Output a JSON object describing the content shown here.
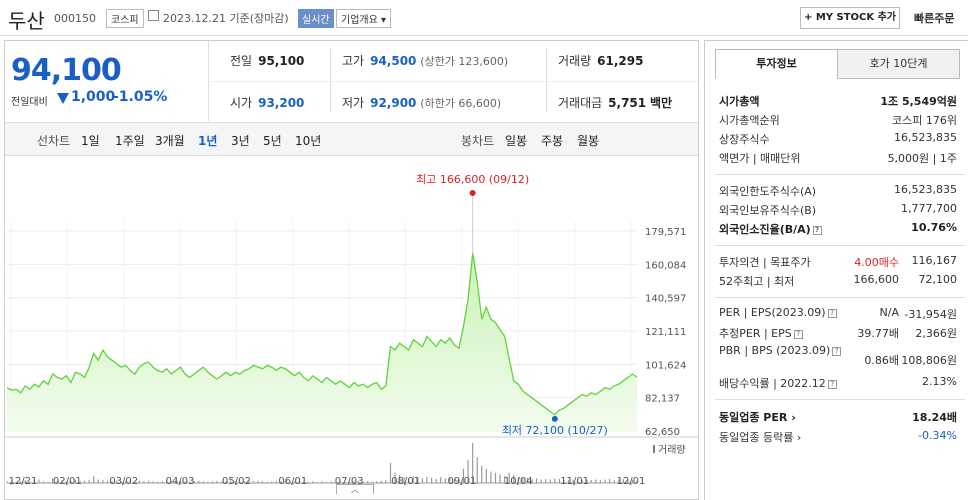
{
  "header": {
    "name": "두산",
    "code": "000150",
    "market": "코스피",
    "date": "2023.12.21 기준(장마감)",
    "realtime": "실시간",
    "corp_info": "기업개요 ▾",
    "my_stock": "+ MY STOCK 추가",
    "quick_order": "빠른주문"
  },
  "price": {
    "current": "94,100",
    "change_label": "전일대비",
    "change": "1,000",
    "change_pct": "-1.05%"
  },
  "summary": {
    "prev_label": "전일",
    "prev": "95,100",
    "high_label": "고가",
    "high": "94,500",
    "high_sub": "(상한가 123,600)",
    "vol_label": "거래량",
    "vol": "61,295",
    "open_label": "시가",
    "open": "93,200",
    "low_label": "저가",
    "low": "92,900",
    "low_sub": "(하한가 66,600)",
    "amt_label": "거래대금",
    "amt": "5,751",
    "amt_unit": "백만"
  },
  "tabs": {
    "line_label": "선차트",
    "periods": [
      "1일",
      "1주일",
      "3개월",
      "1년",
      "3년",
      "5년",
      "10년"
    ],
    "active": "1년",
    "candle_label": "봉차트",
    "candles": [
      "일봉",
      "주봉",
      "월봉"
    ]
  },
  "chart_data": {
    "type": "area",
    "x_ticks": [
      "12/21",
      "02/01",
      "03/02",
      "04/03",
      "05/02",
      "06/01",
      "07/03",
      "08/01",
      "09/01",
      "10/04",
      "11/01",
      "12/01"
    ],
    "y_ticks": [
      179571,
      160084,
      140597,
      121111,
      101624,
      82137,
      62650
    ],
    "ylim": [
      62650,
      179571
    ],
    "values": [
      88000,
      86500,
      87000,
      85000,
      89000,
      87000,
      90000,
      88500,
      92000,
      90000,
      96000,
      94000,
      93000,
      95000,
      91000,
      97000,
      96000,
      94000,
      100000,
      108000,
      104000,
      110000,
      106000,
      104000,
      102000,
      100000,
      101000,
      98000,
      96000,
      100000,
      102000,
      103000,
      100000,
      98000,
      97000,
      99000,
      96000,
      98000,
      100000,
      96000,
      94000,
      96000,
      98000,
      100000,
      97000,
      95000,
      93000,
      95000,
      97000,
      95000,
      97000,
      96000,
      98000,
      99000,
      101000,
      100000,
      99000,
      101000,
      100000,
      98000,
      100000,
      99000,
      97000,
      95000,
      97000,
      94000,
      92000,
      95000,
      93000,
      91000,
      94000,
      92000,
      90000,
      92000,
      90000,
      88000,
      91000,
      89000,
      90000,
      88000,
      90000,
      91000,
      87000,
      89000,
      112000,
      110000,
      114000,
      112000,
      110000,
      116000,
      114000,
      112000,
      118000,
      115000,
      112000,
      116000,
      114000,
      117000,
      113000,
      111000,
      124000,
      140000,
      166600,
      150000,
      128000,
      135000,
      128000,
      126000,
      122000,
      118000,
      105000,
      92000,
      90000,
      86000,
      84000,
      82000,
      80000,
      78000,
      76000,
      74000,
      72100,
      75000,
      76000,
      78000,
      80000,
      82000,
      84000,
      83000,
      85000,
      84000,
      86000,
      88000,
      87000,
      89000,
      90000,
      92000,
      94000,
      96000,
      94100
    ],
    "volumes": [
      3,
      4,
      2,
      3,
      5,
      3,
      4,
      6,
      3,
      2,
      8,
      4,
      5,
      3,
      4,
      6,
      3,
      4,
      5,
      12,
      6,
      5,
      4,
      3,
      4,
      3,
      4,
      5,
      3,
      4,
      3,
      4,
      3,
      2,
      3,
      4,
      3,
      4,
      3,
      3,
      2,
      3,
      4,
      3,
      2,
      3,
      4,
      3,
      3,
      4,
      3,
      2,
      3,
      4,
      3,
      4,
      3,
      2,
      3,
      4,
      3,
      3,
      2,
      3,
      4,
      3,
      2,
      3,
      2,
      3,
      2,
      3,
      2,
      3,
      2,
      3,
      4,
      3,
      2,
      3,
      2,
      3,
      4,
      5,
      35,
      18,
      14,
      10,
      8,
      12,
      10,
      8,
      11,
      9,
      7,
      10,
      8,
      9,
      7,
      8,
      25,
      40,
      70,
      45,
      30,
      25,
      20,
      18,
      15,
      12,
      18,
      14,
      10,
      8,
      9,
      7,
      8,
      6,
      7,
      6,
      8,
      7,
      6,
      5,
      6,
      7,
      5,
      6,
      5,
      6,
      5,
      6,
      7,
      5,
      6,
      7,
      6,
      5,
      4
    ],
    "max_label": "최고 166,600 (09/12)",
    "min_label": "최저 72,100 (10/27)",
    "volume_label": "거래량"
  },
  "invest": {
    "tab_on": "투자정보",
    "tab_off": "호가 10단계",
    "market_cap_label": "시가총액",
    "market_cap": "1조 5,549억원",
    "rank_label": "시가총액순위",
    "rank": "코스피 176위",
    "shares_label": "상장주식수",
    "shares": "16,523,835",
    "face_label": "액면가 | 매매단위",
    "face": "5,000원 | 1주",
    "foreign_limit_label": "외국인한도주식수(A)",
    "foreign_limit": "16,523,835",
    "foreign_hold_label": "외국인보유주식수(B)",
    "foreign_hold": "1,777,700",
    "foreign_ratio_label": "외국인소진율(B/A)",
    "foreign_ratio": "10.76%",
    "opinion_label": "투자의견 | 목표주가",
    "opinion": "4.00매수",
    "target": "116,167",
    "range_label": "52주최고 | 최저",
    "range_high": "166,600",
    "range_low": "72,100",
    "per_label": "PER | EPS(2023.09)",
    "per": "N/A",
    "eps": "-31,954원",
    "est_per_label": "추정PER | EPS",
    "est_per": "39.77배",
    "est_eps": "2,366원",
    "pbr_label": "PBR | BPS (2023.09)",
    "pbr": "0.86배",
    "bps": "108,806원",
    "div_label": "배당수익률 | 2022.12",
    "div": "2.13%",
    "ind_per_label": "동일업종 PER",
    "ind_per": "18.24배",
    "ind_rate_label": "동일업종 등락률",
    "ind_rate": "-0.34%"
  },
  "colors": {
    "blue": "#1a5fc8",
    "red": "#d22222",
    "green_line": "#5fd33a"
  }
}
